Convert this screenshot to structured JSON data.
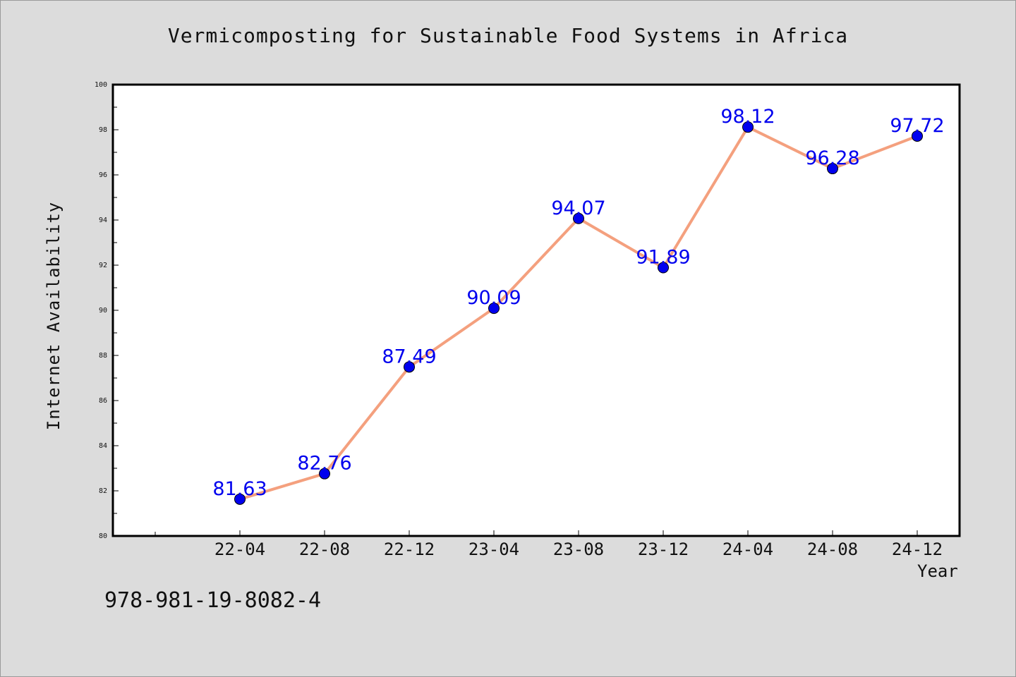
{
  "chart_data": {
    "type": "line",
    "title": "Vermicomposting for Sustainable Food Systems in Africa",
    "xlabel": "Year",
    "ylabel": "Internet Availability",
    "categories": [
      "22-04",
      "22-08",
      "22-12",
      "23-04",
      "23-08",
      "23-12",
      "24-04",
      "24-08",
      "24-12"
    ],
    "values": [
      81.63,
      82.76,
      87.49,
      90.09,
      94.07,
      91.89,
      98.12,
      96.28,
      97.72
    ],
    "value_labels": [
      "81.63",
      "82.76",
      "87.49",
      "90.09",
      "94.07",
      "91.89",
      "98.12",
      "96.28",
      "97.72"
    ],
    "ylim": [
      80,
      100
    ],
    "yticks": [
      "80",
      "82",
      "84",
      "86",
      "88",
      "90",
      "92",
      "94",
      "96",
      "98",
      "100"
    ],
    "grid": false,
    "line_color": "#f4a07e",
    "marker_color": "#0000ee",
    "label_color": "#0000ee"
  },
  "footnote": "978-981-19-8082-4"
}
